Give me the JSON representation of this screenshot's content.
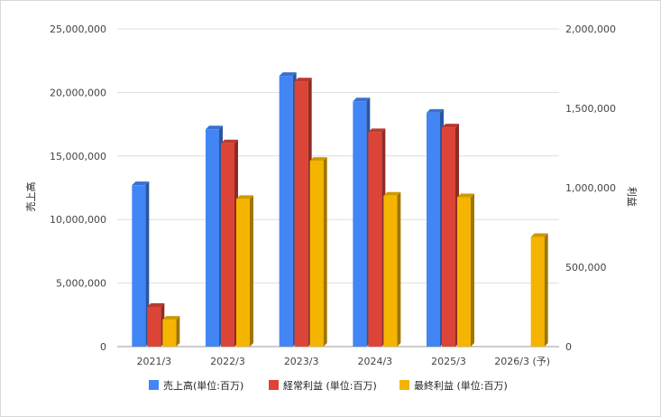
{
  "chart_data": {
    "type": "bar",
    "categories": [
      "2021/3",
      "2022/3",
      "2023/3",
      "2024/3",
      "2025/3",
      "2026/3 (予)"
    ],
    "series": [
      {
        "name": "売上高(単位:百万)",
        "axis": "left",
        "color": "#4285f4",
        "values": [
          12700000,
          17100000,
          21300000,
          19300000,
          18400000,
          null
        ]
      },
      {
        "name": "経常利益 (単位:百万)",
        "axis": "right",
        "color": "#db4437",
        "values": [
          250000,
          1280000,
          1670000,
          1350000,
          1380000,
          null
        ]
      },
      {
        "name": "最終利益 (単位:百万)",
        "axis": "right",
        "color": "#f4b400",
        "values": [
          170000,
          930000,
          1170000,
          950000,
          940000,
          690000
        ]
      }
    ],
    "left_axis": {
      "label": "売上高",
      "min": 0,
      "max": 25000000,
      "ticks": [
        "0",
        "5,000,000",
        "10,000,000",
        "15,000,000",
        "20,000,000",
        "25,000,000"
      ]
    },
    "right_axis": {
      "label": "利益",
      "min": 0,
      "max": 2000000,
      "ticks": [
        "0",
        "500,000",
        "1,000,000",
        "1,500,000",
        "2,000,000"
      ]
    },
    "grid": true,
    "legend_position": "bottom"
  }
}
